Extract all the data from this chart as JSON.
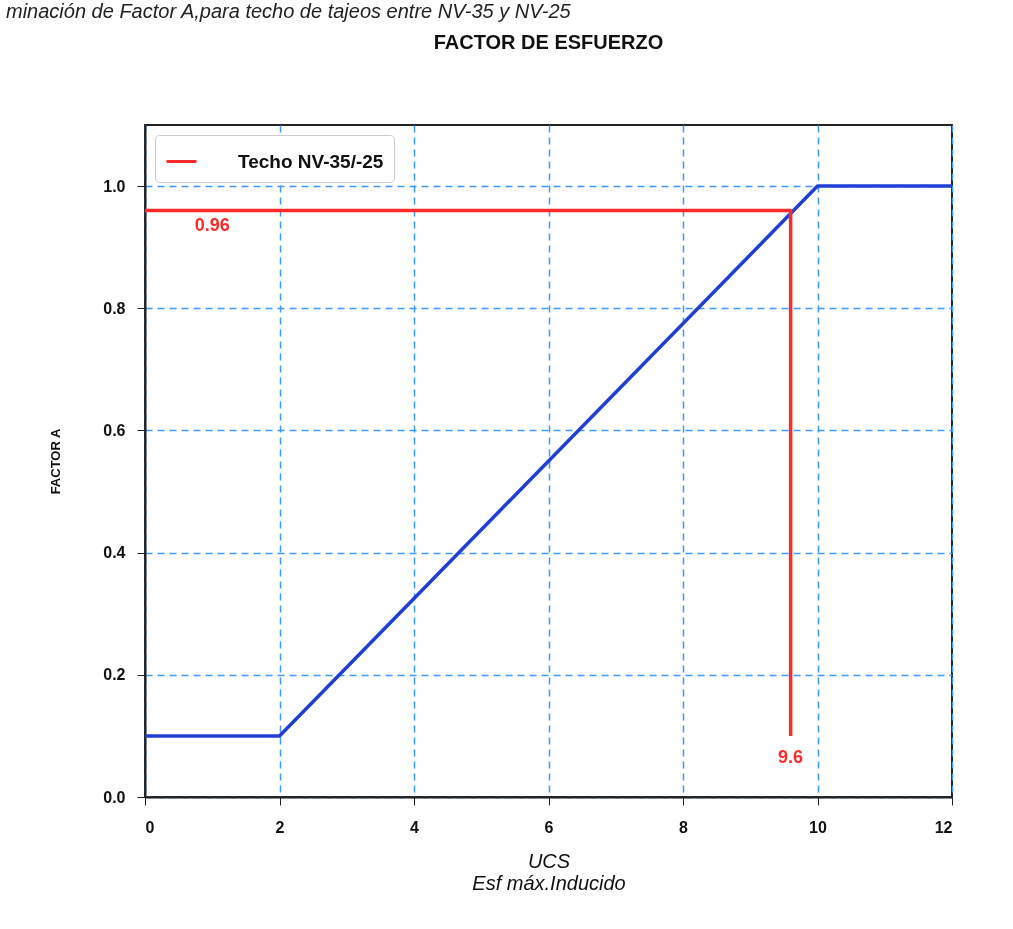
{
  "chart_data": {
    "type": "line",
    "title": "FACTOR DE ESFUERZO",
    "xlabel": "UCS\nEsf máx.Inducido",
    "ylabel": "FACTOR A",
    "annotations": [
      "minación de Factor A,para techo de tajeos entre NV-35 y NV-25",
      {
        "text": "0.96",
        "x": 1,
        "y": 0.96
      },
      {
        "text": "9.6",
        "x": 9.6,
        "y": 0.1
      }
    ],
    "series": [
      {
        "color": "#1f3fd6",
        "x": [
          0,
          2,
          10,
          12
        ],
        "values": [
          0.1,
          0.1,
          1.0,
          1.0
        ]
      },
      {
        "name": "Techo NV-35/-25",
        "color": "#ff2a2a",
        "x": [
          0,
          9.6,
          9.6
        ],
        "values": [
          0.96,
          0.96,
          0.1
        ]
      }
    ],
    "xlim": [
      0,
      12
    ],
    "xticks": [
      0,
      2,
      4,
      6,
      8,
      10,
      12
    ],
    "ylim": [
      0,
      1.1
    ],
    "yticks": [
      {
        "value": 0,
        "label": "0.0"
      },
      0.2,
      0.4,
      0.6,
      0.8,
      {
        "value": 1,
        "label": "1.0"
      }
    ],
    "grid": true,
    "legend": "top left",
    "marker": "none",
    "line_style": "solid"
  }
}
